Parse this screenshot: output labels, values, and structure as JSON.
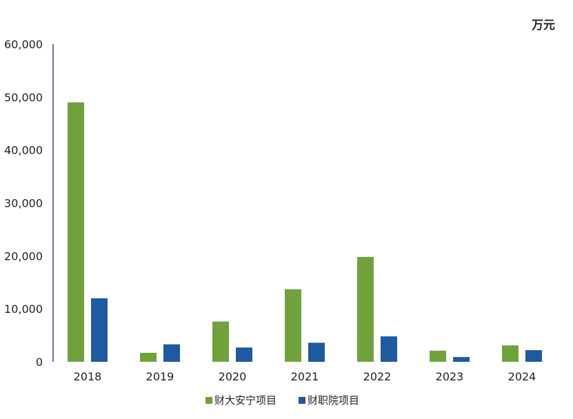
{
  "chart_data": {
    "type": "bar",
    "unit_label": "万元",
    "categories": [
      "2018",
      "2019",
      "2020",
      "2021",
      "2022",
      "2023",
      "2024"
    ],
    "series": [
      {
        "name": "财大安宁项目",
        "color": "#70a23c",
        "values": [
          49000,
          1700,
          7600,
          13700,
          19800,
          2100,
          3100
        ]
      },
      {
        "name": "财职院项目",
        "color": "#1e5aa0",
        "values": [
          12000,
          3300,
          2700,
          3600,
          4800,
          900,
          2200
        ]
      }
    ],
    "ylim": [
      0,
      60000
    ],
    "yticks": [
      "0",
      "10,000",
      "20,000",
      "30,000",
      "40,000",
      "50,000",
      "60,000"
    ],
    "grid": false,
    "legend_position": "bottom-center"
  }
}
